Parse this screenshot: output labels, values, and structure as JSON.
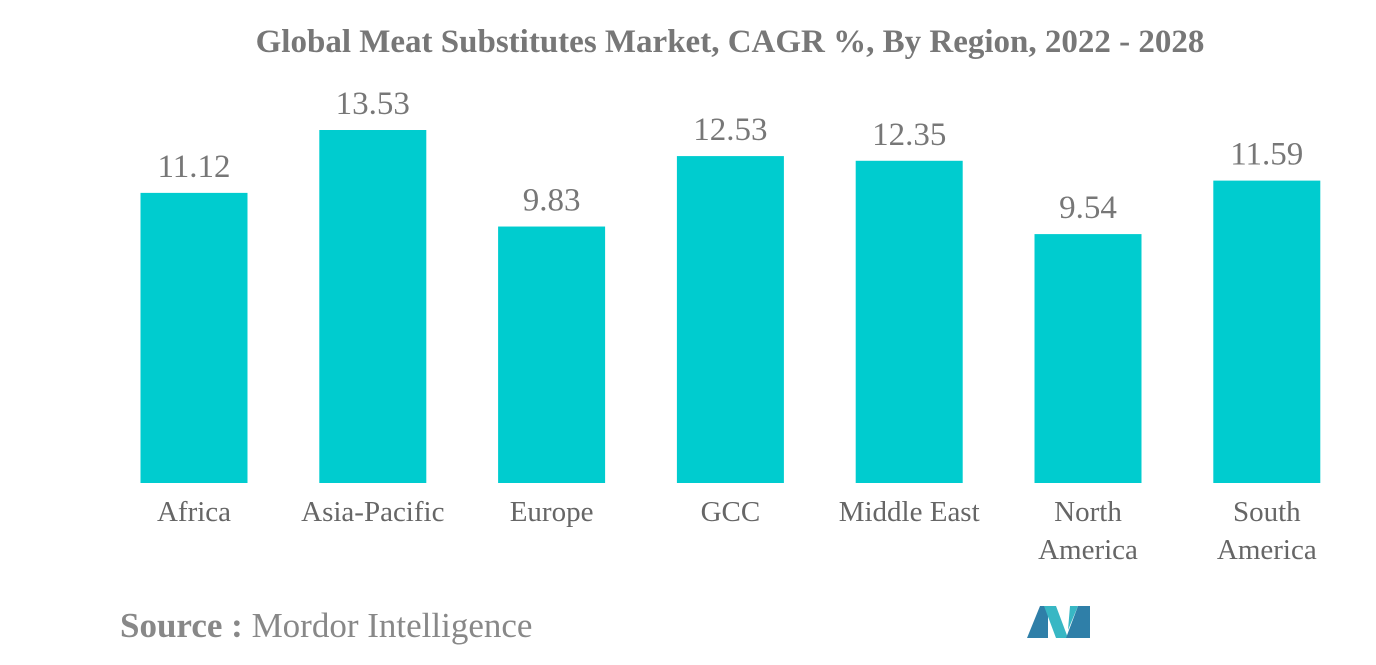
{
  "chart_data": {
    "type": "bar",
    "title": "Global Meat Substitutes Market, CAGR %, By Region, 2022 - 2028",
    "categories": [
      "Africa",
      "Asia-Pacific",
      "Europe",
      "GCC",
      "Middle East",
      "North America",
      "South America"
    ],
    "values": [
      11.12,
      13.53,
      9.83,
      12.53,
      12.35,
      9.54,
      11.59
    ],
    "color": "#00cccf"
  },
  "source": {
    "label": "Source :",
    "text": "Mordor Intelligence"
  }
}
